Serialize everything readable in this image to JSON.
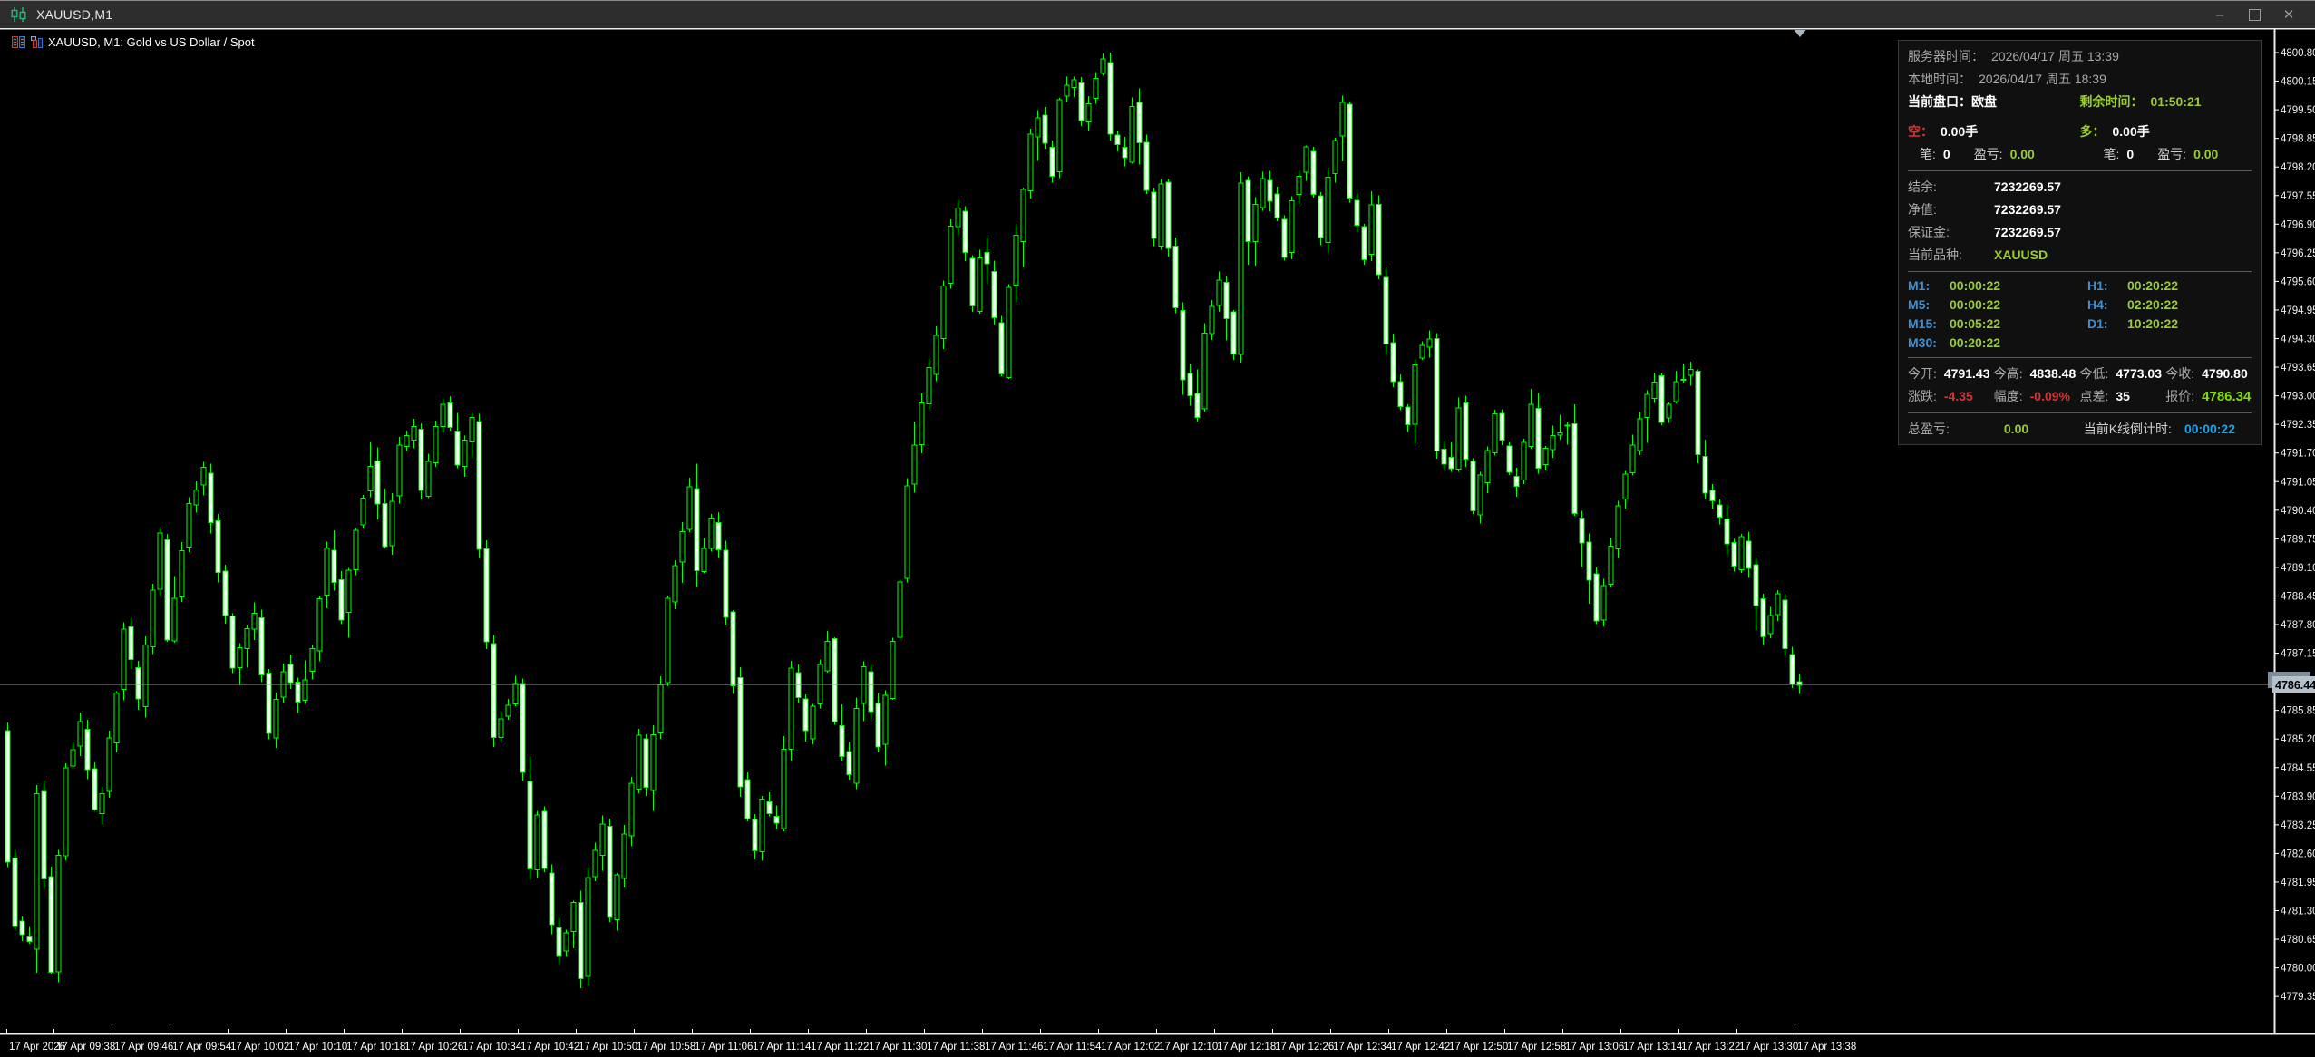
{
  "window": {
    "title": "XAUUSD,M1",
    "controls": {
      "minimize": "–",
      "maximize": "",
      "close": "✕"
    }
  },
  "chart_header": {
    "symbol_label": "XAUUSD, M1:  Gold vs US Dollar / Spot"
  },
  "panel": {
    "server_time_label": "服务器时间：",
    "server_time": "2026/04/17 周五 13:39",
    "local_time_label": "本地时间：",
    "local_time": "2026/04/17 周五 18:39",
    "session_label": "当前盘口：",
    "session": "欧盘",
    "remaining_label": "剩余时间：",
    "remaining": "01:50:21",
    "short_label": "空：",
    "short_lots": "0.00手",
    "short_count_label": "笔:",
    "short_count": "0",
    "short_pl_label": "盈亏:",
    "short_pl": "0.00",
    "long_label": "多：",
    "long_lots": "0.00手",
    "long_count_label": "笔:",
    "long_count": "0",
    "long_pl_label": "盈亏:",
    "long_pl": "0.00",
    "balance_label": "结余:",
    "balance": "7232269.57",
    "equity_label": "净值:",
    "equity": "7232269.57",
    "margin_label": "保证金:",
    "margin": "7232269.57",
    "symbol_label": "当前品种:",
    "symbol": "XAUUSD",
    "timeframes_left": [
      {
        "label": "M1:",
        "value": "00:00:22"
      },
      {
        "label": "M5:",
        "value": "00:00:22"
      },
      {
        "label": "M15:",
        "value": "00:05:22"
      },
      {
        "label": "M30:",
        "value": "00:20:22"
      }
    ],
    "timeframes_right": [
      {
        "label": "H1:",
        "value": "00:20:22"
      },
      {
        "label": "H4:",
        "value": "02:20:22"
      },
      {
        "label": "D1:",
        "value": "10:20:22"
      }
    ],
    "quotes": [
      {
        "label": "今开:",
        "value": "4791.43"
      },
      {
        "label": "今高:",
        "value": "4838.48"
      },
      {
        "label": "今低:",
        "value": "4773.03"
      },
      {
        "label": "今收:",
        "value": "4790.80"
      }
    ],
    "stats": [
      {
        "label": "涨跌:",
        "value": "-4.35"
      },
      {
        "label": "幅度:",
        "value": "-0.09%"
      },
      {
        "label": "点差:",
        "value": "35"
      },
      {
        "label": "报价:",
        "value": "4786.34"
      }
    ],
    "total_pl_label": "总盈亏:",
    "total_pl": "0.00",
    "candle_timer_label": "当前K线倒计时:",
    "candle_timer": "00:00:22"
  },
  "chart_data": {
    "type": "candlestick",
    "symbol": "XAUUSD",
    "timeframe": "M1",
    "title": "XAUUSD, M1:  Gold vs US Dollar / Spot",
    "current_price_tag": "4786.44",
    "visible_price_range": [
      4778.5,
      4801.4
    ],
    "y_ticks": [
      "4800.80",
      "4800.15",
      "4799.50",
      "4798.85",
      "4798.20",
      "4797.55",
      "4796.90",
      "4796.25",
      "4795.60",
      "4794.95",
      "4794.30",
      "4793.65",
      "4793.00",
      "4792.35",
      "4791.70",
      "4791.05",
      "4790.40",
      "4789.75",
      "4789.10",
      "4788.45",
      "4787.80",
      "4787.15",
      "4786.50",
      "4785.85",
      "4785.20",
      "4784.55",
      "4783.90",
      "4783.25",
      "4782.60",
      "4781.95",
      "4781.30",
      "4780.65",
      "4780.00",
      "4779.35"
    ],
    "x_labels": [
      "17 Apr 2026",
      "17 Apr 09:38",
      "17 Apr 09:46",
      "17 Apr 09:54",
      "17 Apr 10:02",
      "17 Apr 10:10",
      "17 Apr 10:18",
      "17 Apr 10:26",
      "17 Apr 10:34",
      "17 Apr 10:42",
      "17 Apr 10:50",
      "17 Apr 10:58",
      "17 Apr 11:06",
      "17 Apr 11:14",
      "17 Apr 11:22",
      "17 Apr 11:30",
      "17 Apr 11:38",
      "17 Apr 11:46",
      "17 Apr 11:54",
      "17 Apr 12:02",
      "17 Apr 12:10",
      "17 Apr 12:18",
      "17 Apr 12:26",
      "17 Apr 12:34",
      "17 Apr 12:42",
      "17 Apr 12:50",
      "17 Apr 12:58",
      "17 Apr 13:06",
      "17 Apr 13:14",
      "17 Apr 13:22",
      "17 Apr 13:30",
      "17 Apr 13:38"
    ],
    "candle_count": 248,
    "waypoints": [
      [
        0,
        4785.5
      ],
      [
        1,
        4782.5
      ],
      [
        2,
        4781.0
      ],
      [
        4,
        4780.5
      ],
      [
        5,
        4784.0
      ],
      [
        7,
        4780.0
      ],
      [
        8,
        4782.5
      ],
      [
        9,
        4784.5
      ],
      [
        11,
        4785.5
      ],
      [
        13,
        4783.5
      ],
      [
        14,
        4784.0
      ],
      [
        16,
        4786.3
      ],
      [
        17,
        4787.8
      ],
      [
        19,
        4786.0
      ],
      [
        22,
        4789.8
      ],
      [
        23,
        4787.5
      ],
      [
        25,
        4789.5
      ],
      [
        26,
        4790.5
      ],
      [
        28,
        4791.3
      ],
      [
        30,
        4789.0
      ],
      [
        32,
        4786.8
      ],
      [
        35,
        4788.0
      ],
      [
        37,
        4785.3
      ],
      [
        39,
        4786.8
      ],
      [
        41,
        4786.0
      ],
      [
        43,
        4787.3
      ],
      [
        45,
        4789.5
      ],
      [
        47,
        4788.0
      ],
      [
        49,
        4790.0
      ],
      [
        51,
        4791.5
      ],
      [
        53,
        4789.5
      ],
      [
        55,
        4791.8
      ],
      [
        57,
        4792.3
      ],
      [
        58,
        4790.8
      ],
      [
        60,
        4792.2
      ],
      [
        61,
        4792.9
      ],
      [
        63,
        4791.5
      ],
      [
        65,
        4792.5
      ],
      [
        66,
        4789.5
      ],
      [
        68,
        4785.2
      ],
      [
        71,
        4786.5
      ],
      [
        73,
        4782.2
      ],
      [
        74,
        4783.5
      ],
      [
        76,
        4781.0
      ],
      [
        77,
        4780.3
      ],
      [
        79,
        4781.5
      ],
      [
        80,
        4779.8
      ],
      [
        81,
        4782.0
      ],
      [
        83,
        4783.2
      ],
      [
        84,
        4781.2
      ],
      [
        86,
        4783.0
      ],
      [
        88,
        4785.2
      ],
      [
        89,
        4784.0
      ],
      [
        91,
        4786.5
      ],
      [
        92,
        4788.3
      ],
      [
        94,
        4790.0
      ],
      [
        95,
        4790.9
      ],
      [
        96,
        4789.0
      ],
      [
        98,
        4790.2
      ],
      [
        99,
        4789.5
      ],
      [
        101,
        4786.5
      ],
      [
        102,
        4784.2
      ],
      [
        104,
        4782.6
      ],
      [
        105,
        4783.8
      ],
      [
        107,
        4783.2
      ],
      [
        109,
        4786.8
      ],
      [
        111,
        4785.3
      ],
      [
        113,
        4786.8
      ],
      [
        114,
        4787.4
      ],
      [
        115,
        4785.5
      ],
      [
        117,
        4784.3
      ],
      [
        118,
        4786.0
      ],
      [
        119,
        4786.8
      ],
      [
        121,
        4785.0
      ],
      [
        122,
        4786.2
      ],
      [
        124,
        4788.8
      ],
      [
        125,
        4791.0
      ],
      [
        127,
        4792.8
      ],
      [
        128,
        4793.6
      ],
      [
        129,
        4794.3
      ],
      [
        131,
        4796.8
      ],
      [
        132,
        4797.3
      ],
      [
        134,
        4795.0
      ],
      [
        135,
        4796.2
      ],
      [
        136,
        4795.9
      ],
      [
        138,
        4793.5
      ],
      [
        139,
        4795.5
      ],
      [
        141,
        4797.6
      ],
      [
        142,
        4798.9
      ],
      [
        143,
        4799.3
      ],
      [
        145,
        4798.0
      ],
      [
        146,
        4799.8
      ],
      [
        148,
        4800.1
      ],
      [
        149,
        4799.2
      ],
      [
        151,
        4800.3
      ],
      [
        152,
        4800.6
      ],
      [
        153,
        4799.0
      ],
      [
        155,
        4798.4
      ],
      [
        156,
        4799.6
      ],
      [
        157,
        4798.8
      ],
      [
        159,
        4796.5
      ],
      [
        160,
        4797.8
      ],
      [
        162,
        4795.0
      ],
      [
        163,
        4793.4
      ],
      [
        165,
        4792.6
      ],
      [
        166,
        4794.5
      ],
      [
        168,
        4795.6
      ],
      [
        170,
        4794.0
      ],
      [
        171,
        4797.8
      ],
      [
        172,
        4796.6
      ],
      [
        174,
        4798.0
      ],
      [
        176,
        4797.0
      ],
      [
        177,
        4796.2
      ],
      [
        178,
        4797.5
      ],
      [
        180,
        4798.6
      ],
      [
        182,
        4796.5
      ],
      [
        183,
        4798.0
      ],
      [
        185,
        4799.6
      ],
      [
        186,
        4797.5
      ],
      [
        188,
        4796.2
      ],
      [
        189,
        4797.4
      ],
      [
        191,
        4794.2
      ],
      [
        192,
        4793.3
      ],
      [
        194,
        4792.4
      ],
      [
        195,
        4793.8
      ],
      [
        197,
        4794.3
      ],
      [
        198,
        4791.8
      ],
      [
        200,
        4791.3
      ],
      [
        201,
        4792.8
      ],
      [
        203,
        4790.4
      ],
      [
        205,
        4791.8
      ],
      [
        206,
        4792.6
      ],
      [
        208,
        4791.2
      ],
      [
        209,
        4791.0
      ],
      [
        211,
        4792.7
      ],
      [
        212,
        4791.4
      ],
      [
        214,
        4792.0
      ],
      [
        216,
        4792.4
      ],
      [
        217,
        4790.3
      ],
      [
        219,
        4788.9
      ],
      [
        220,
        4787.9
      ],
      [
        222,
        4789.5
      ],
      [
        223,
        4790.6
      ],
      [
        225,
        4791.8
      ],
      [
        226,
        4792.5
      ],
      [
        228,
        4793.4
      ],
      [
        229,
        4792.5
      ],
      [
        231,
        4793.3
      ],
      [
        233,
        4793.6
      ],
      [
        234,
        4791.6
      ],
      [
        235,
        4790.8
      ],
      [
        237,
        4790.2
      ],
      [
        239,
        4789.1
      ],
      [
        240,
        4789.8
      ],
      [
        242,
        4788.3
      ],
      [
        243,
        4787.6
      ],
      [
        245,
        4788.4
      ],
      [
        246,
        4787.2
      ],
      [
        247,
        4786.44
      ]
    ],
    "colors": {
      "outline": "#00ff00",
      "bull_fill": "#000000",
      "bear_fill": "#ffffff",
      "price_line": "#9a9a9a",
      "axis_line": "#ececec",
      "background": "#000000",
      "tag_bg": "#b6c2cb",
      "marker": "#a6b9c9"
    },
    "legend_position": "none",
    "grid": false
  }
}
